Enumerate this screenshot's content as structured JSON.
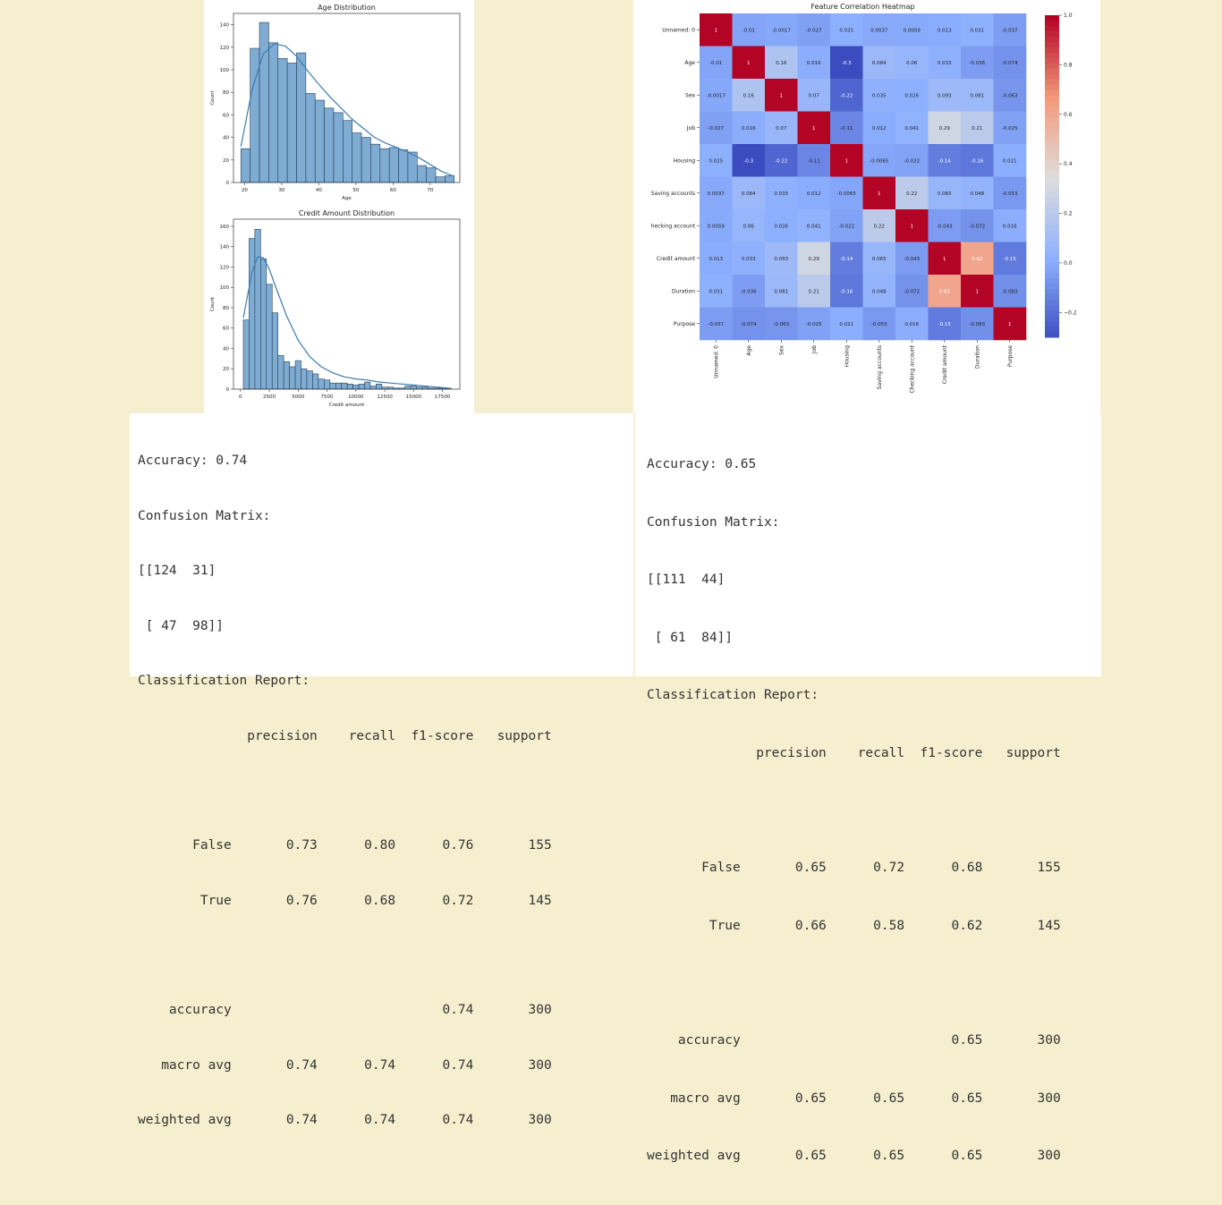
{
  "colors": {
    "bar": "#7eacd3",
    "bar_edge": "#2b3f55",
    "kde": "#3d7cb3",
    "background": "#f6efcf"
  },
  "chart_data": [
    {
      "type": "bar",
      "title": "Age Distribution",
      "xlabel": "Age",
      "ylabel": "Count",
      "xlim": [
        17,
        78
      ],
      "ylim": [
        0,
        150
      ],
      "xticks": [
        20,
        30,
        40,
        50,
        60,
        70
      ],
      "yticks": [
        0,
        20,
        40,
        60,
        80,
        100,
        120,
        140
      ],
      "bins": [
        [
          19,
          21.5
        ],
        [
          21.5,
          24
        ],
        [
          24,
          26.5
        ],
        [
          26.5,
          29
        ],
        [
          29,
          31.5
        ],
        [
          31.5,
          34
        ],
        [
          34,
          36.5
        ],
        [
          36.5,
          39
        ],
        [
          39,
          41.5
        ],
        [
          41.5,
          44
        ],
        [
          44,
          46.5
        ],
        [
          46.5,
          49
        ],
        [
          49,
          51.5
        ],
        [
          51.5,
          54
        ],
        [
          54,
          56.5
        ],
        [
          56.5,
          59
        ],
        [
          59,
          61.5
        ],
        [
          61.5,
          64
        ],
        [
          64,
          66.5
        ],
        [
          66.5,
          69
        ],
        [
          69,
          71.5
        ],
        [
          71.5,
          74
        ],
        [
          74,
          76.5
        ]
      ],
      "values": [
        30,
        119,
        142,
        124,
        110,
        106,
        115,
        79,
        73,
        66,
        62,
        55,
        44,
        40,
        34,
        30,
        31,
        29,
        27,
        15,
        13,
        5,
        6
      ],
      "kde_x": [
        19,
        22,
        25,
        28,
        31,
        34,
        37,
        40,
        43,
        46,
        49,
        52,
        55,
        58,
        61,
        64,
        67,
        70,
        73,
        76
      ],
      "kde_y": [
        32,
        82,
        114,
        123,
        121,
        112,
        99,
        87,
        76,
        66,
        56,
        48,
        40,
        35,
        31,
        27,
        22,
        16,
        10,
        6
      ]
    },
    {
      "type": "bar",
      "title": "Credit Amount Distribution",
      "xlabel": "Credit amount",
      "ylabel": "Count",
      "xlim": [
        -600,
        19000
      ],
      "ylim": [
        0,
        167
      ],
      "xticks": [
        0,
        2500,
        5000,
        7500,
        10000,
        12500,
        15000,
        17500
      ],
      "yticks": [
        0,
        20,
        40,
        60,
        80,
        100,
        120,
        140,
        160
      ],
      "bin_start": 250,
      "bin_width": 500,
      "values": [
        68,
        148,
        157,
        128,
        103,
        75,
        33,
        27,
        22,
        28,
        20,
        18,
        15,
        10,
        9,
        6,
        6,
        6,
        5,
        4,
        5,
        7,
        3,
        5,
        2,
        2,
        1,
        1,
        3,
        3,
        2,
        2,
        1,
        1,
        1,
        1
      ],
      "kde_x": [
        250,
        1000,
        1500,
        2000,
        2500,
        3000,
        4000,
        5000,
        6000,
        7000,
        8000,
        9000,
        10000,
        11000,
        12000,
        13000,
        14000,
        15000,
        16000,
        17000,
        18000
      ],
      "kde_y": [
        70,
        115,
        130,
        129,
        118,
        102,
        72,
        48,
        32,
        22,
        16,
        12,
        10,
        9,
        7,
        6,
        5,
        4,
        3,
        2,
        1
      ]
    },
    {
      "type": "heatmap",
      "title": "Feature Correlation Heatmap",
      "labels": [
        "Unnamed: 0",
        "Age",
        "Sex",
        "Job",
        "Housing",
        "Saving accounts",
        "Checking account",
        "Credit amount",
        "Duration",
        "Purpose"
      ],
      "matrix": [
        [
          1,
          -0.01,
          -0.0017,
          -0.027,
          0.025,
          0.0037,
          0.0059,
          0.013,
          0.031,
          -0.037
        ],
        [
          -0.01,
          1,
          0.16,
          0.016,
          -0.3,
          0.084,
          0.06,
          0.033,
          -0.036,
          -0.074
        ],
        [
          -0.0017,
          0.16,
          1,
          0.07,
          -0.22,
          0.035,
          0.026,
          0.093,
          0.081,
          -0.063
        ],
        [
          -0.027,
          0.016,
          0.07,
          1,
          -0.11,
          0.012,
          0.041,
          0.29,
          0.21,
          -0.025
        ],
        [
          0.025,
          -0.3,
          -0.22,
          -0.11,
          1,
          -0.0065,
          -0.022,
          -0.14,
          -0.16,
          0.021
        ],
        [
          0.0037,
          0.084,
          0.035,
          0.012,
          -0.0065,
          1,
          0.22,
          0.065,
          0.048,
          -0.053
        ],
        [
          0.0059,
          0.06,
          0.026,
          0.041,
          -0.022,
          0.22,
          1,
          -0.043,
          -0.072,
          0.016
        ],
        [
          0.013,
          0.033,
          0.093,
          0.29,
          -0.14,
          0.065,
          -0.043,
          1,
          0.62,
          -0.15
        ],
        [
          0.031,
          -0.036,
          0.081,
          0.21,
          -0.16,
          0.048,
          -0.072,
          0.62,
          1,
          -0.083
        ],
        [
          -0.037,
          -0.074,
          -0.063,
          -0.025,
          0.021,
          -0.053,
          0.016,
          -0.15,
          -0.083,
          1
        ]
      ],
      "row_labels_shown": [
        "Unnamed: 0",
        "Age",
        "Sex",
        "Job",
        "Housing",
        "Saving accounts",
        "hecking account",
        "Credit amount",
        "Duration",
        "Purpose"
      ],
      "cell_text": [
        [
          "1",
          "-0.01",
          "-0.0017",
          "-0.027",
          "0.025",
          "0.0037",
          "0.0059",
          "0.013",
          "0.031",
          "-0.037"
        ],
        [
          "-0.01",
          "1",
          "0.16",
          "0.016",
          "-0.3",
          "0.084",
          "0.06",
          "0.033",
          "-0.036",
          "-0.074"
        ],
        [
          "-0.0017",
          "0.16",
          "1",
          "0.07",
          "-0.22",
          "0.035",
          "0.026",
          "0.093",
          "0.081",
          "-0.063"
        ],
        [
          "-0.027",
          "0.016",
          "0.07",
          "1",
          "-0.11",
          "0.012",
          "0.041",
          "0.29",
          "0.21",
          "-0.025"
        ],
        [
          "0.025",
          "-0.3",
          "-0.22",
          "-0.11",
          "1",
          "-0.0065",
          "-0.022",
          "-0.14",
          "-0.16",
          "0.021"
        ],
        [
          "0.0037",
          "0.084",
          "0.035",
          "0.012",
          "-0.0065",
          "1",
          "0.22",
          "0.065",
          "0.048",
          "-0.053"
        ],
        [
          "0.0059",
          "0.06",
          "0.026",
          "0.041",
          "-0.022",
          "0.22",
          "1",
          "-0.043",
          "-0.072",
          "0.016"
        ],
        [
          "0.013",
          "0.033",
          "0.093",
          "0.29",
          "-0.14",
          "0.065",
          "-0.043",
          "1",
          "0.62",
          "-0.15"
        ],
        [
          "0.031",
          "-0.036",
          "0.081",
          "0.21",
          "-0.16",
          "0.048",
          "-0.072",
          "0.62",
          "1",
          "-0.083"
        ],
        [
          "-0.037",
          "-0.074",
          "-0.063",
          "-0.025",
          "0.021",
          "-0.053",
          "0.016",
          "-0.15",
          "-0.083",
          "1"
        ]
      ],
      "colorbar_range": [
        -0.3,
        1.0
      ],
      "colorbar_ticks": [
        {
          "value": 1.0,
          "label": "1.0"
        },
        {
          "value": 0.8,
          "label": "0.8"
        },
        {
          "value": 0.6,
          "label": "0.6"
        },
        {
          "value": 0.4,
          "label": "0.4"
        },
        {
          "value": 0.2,
          "label": "0.2"
        },
        {
          "value": 0.0,
          "label": "0.0"
        },
        {
          "value": -0.2,
          "label": "−0.2"
        }
      ],
      "colormap": "coolwarm"
    }
  ],
  "reports": [
    {
      "accuracy_line": "Accuracy: 0.74",
      "cm_title": "Confusion Matrix:",
      "cm_row1": "[[124  31]",
      "cm_row2": " [ 47  98]]",
      "report_title": "Classification Report:",
      "header": "              precision    recall  f1-score   support",
      "row_false": "       False       0.73      0.80      0.76       155",
      "row_true": "        True       0.76      0.68      0.72       145",
      "row_accuracy": "    accuracy                           0.74       300",
      "row_macro": "   macro avg       0.74      0.74      0.74       300",
      "row_weighted": "weighted avg       0.74      0.74      0.74       300"
    },
    {
      "accuracy_line": "Accuracy: 0.65",
      "cm_title": "Confusion Matrix:",
      "cm_row1": "[[111  44]",
      "cm_row2": " [ 61  84]]",
      "report_title": "Classification Report:",
      "header": "              precision    recall  f1-score   support",
      "row_false": "       False       0.65      0.72      0.68       155",
      "row_true": "        True       0.66      0.58      0.62       145",
      "row_accuracy": "    accuracy                           0.65       300",
      "row_macro": "   macro avg       0.65      0.65      0.65       300",
      "row_weighted": "weighted avg       0.65      0.65      0.65       300"
    }
  ]
}
